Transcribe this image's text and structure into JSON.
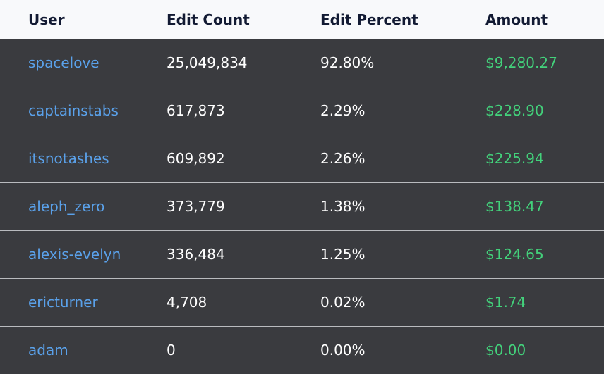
{
  "table": {
    "headers": {
      "user": "User",
      "edit_count": "Edit Count",
      "edit_percent": "Edit Percent",
      "amount": "Amount"
    },
    "rows": [
      {
        "user": "spacelove",
        "edit_count": "25,049,834",
        "edit_percent": "92.80%",
        "amount": "$9,280.27"
      },
      {
        "user": "captainstabs",
        "edit_count": "617,873",
        "edit_percent": "2.29%",
        "amount": "$228.90"
      },
      {
        "user": "itsnotashes",
        "edit_count": "609,892",
        "edit_percent": "2.26%",
        "amount": "$225.94"
      },
      {
        "user": "aleph_zero",
        "edit_count": "373,779",
        "edit_percent": "1.38%",
        "amount": "$138.47"
      },
      {
        "user": "alexis-evelyn",
        "edit_count": "336,484",
        "edit_percent": "1.25%",
        "amount": "$124.65"
      },
      {
        "user": "ericturner",
        "edit_count": "4,708",
        "edit_percent": "0.02%",
        "amount": "$1.74"
      },
      {
        "user": "adam",
        "edit_count": "0",
        "edit_percent": "0.00%",
        "amount": "$0.00"
      }
    ]
  },
  "colors": {
    "header_bg": "#f8f9fb",
    "header_text": "#121a33",
    "row_bg": "#3a3b3f",
    "link": "#5aa1ea",
    "amount": "#43d17b",
    "divider": "#b9bbbf"
  }
}
